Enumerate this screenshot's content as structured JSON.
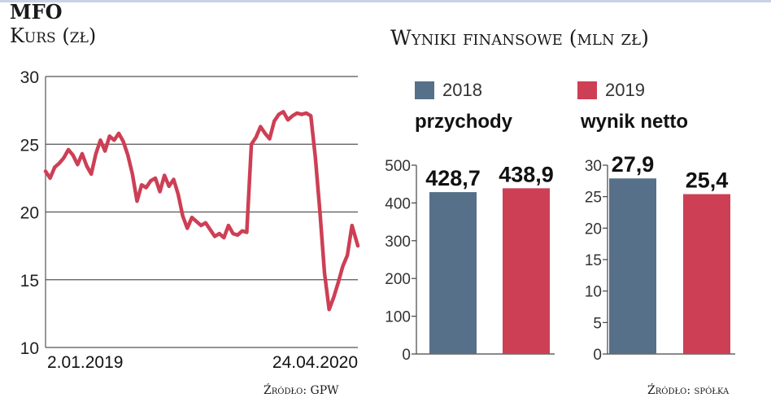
{
  "ticker": "MFO",
  "price_subtitle": "Kurs (zł)",
  "financials_title": "Wyniki finansowe (mln zł)",
  "price_source": "Źródło: GPW",
  "financials_source": "Źródło: spółka",
  "colors": {
    "series_2018": "#567089",
    "series_2019": "#cd3f55",
    "price_line": "#cd3f55",
    "grid": "#555555"
  },
  "chart_data": [
    {
      "type": "line",
      "title": "Kurs (zł)",
      "x_start_label": "2.01.2019",
      "x_end_label": "24.04.2020",
      "ylim": [
        10,
        30
      ],
      "yticks": [
        "10",
        "15",
        "20",
        "25",
        "30"
      ],
      "grid": true,
      "series": [
        {
          "x": [
            "2019-01-02",
            "2019-01-09",
            "2019-01-16",
            "2019-01-23",
            "2019-01-30",
            "2019-02-06",
            "2019-02-13",
            "2019-02-20",
            "2019-02-27",
            "2019-03-06",
            "2019-03-13",
            "2019-03-20",
            "2019-03-27",
            "2019-04-03",
            "2019-04-10",
            "2019-04-17",
            "2019-04-24",
            "2019-05-01",
            "2019-05-08",
            "2019-05-15",
            "2019-05-22",
            "2019-05-29",
            "2019-06-05",
            "2019-06-12",
            "2019-06-19",
            "2019-06-26",
            "2019-07-03",
            "2019-07-10",
            "2019-07-17",
            "2019-07-24",
            "2019-07-31",
            "2019-08-07",
            "2019-08-14",
            "2019-08-21",
            "2019-08-28",
            "2019-09-04",
            "2019-09-11",
            "2019-09-18",
            "2019-09-25",
            "2019-10-02",
            "2019-10-09",
            "2019-10-16",
            "2019-10-23",
            "2019-10-30",
            "2019-11-06",
            "2019-11-13",
            "2019-11-20",
            "2019-11-27",
            "2019-12-04",
            "2019-12-11",
            "2019-12-18",
            "2019-12-25",
            "2020-01-01",
            "2020-01-08",
            "2020-01-15",
            "2020-01-22",
            "2020-01-29",
            "2020-02-05",
            "2020-02-12",
            "2020-02-19",
            "2020-02-26",
            "2020-03-04",
            "2020-03-11",
            "2020-03-18",
            "2020-03-25",
            "2020-04-01",
            "2020-04-08",
            "2020-04-15",
            "2020-04-24"
          ],
          "y": [
            23.0,
            22.5,
            23.3,
            23.6,
            24.0,
            24.6,
            24.2,
            23.5,
            24.3,
            23.4,
            22.8,
            24.3,
            25.3,
            24.5,
            25.6,
            25.3,
            25.8,
            25.2,
            24.2,
            22.8,
            20.8,
            22.0,
            21.8,
            22.3,
            22.5,
            21.5,
            22.7,
            21.9,
            22.4,
            21.3,
            19.7,
            18.8,
            19.6,
            19.3,
            19.0,
            19.2,
            18.7,
            18.2,
            18.4,
            18.1,
            19.0,
            18.4,
            18.3,
            18.6,
            18.5,
            25.0,
            25.5,
            26.3,
            25.8,
            25.4,
            26.7,
            27.2,
            27.4,
            26.8,
            27.1,
            27.3,
            27.2,
            27.3,
            27.1,
            24.0,
            20.0,
            15.5,
            12.8,
            13.7,
            14.8,
            16.0,
            16.8,
            19.0,
            17.5
          ]
        }
      ]
    },
    {
      "type": "bar",
      "title": "przychody",
      "categories": [
        "2018",
        "2019"
      ],
      "values": [
        428.7,
        438.9
      ],
      "value_labels": [
        "428,7",
        "438,9"
      ],
      "ylim": [
        0,
        500
      ],
      "yticks": [
        "0",
        "100",
        "200",
        "300",
        "400",
        "500"
      ]
    },
    {
      "type": "bar",
      "title": "wynik netto",
      "categories": [
        "2018",
        "2019"
      ],
      "values": [
        27.9,
        25.4
      ],
      "value_labels": [
        "27,9",
        "25,4"
      ],
      "ylim": [
        0,
        30
      ],
      "yticks": [
        "0",
        "5",
        "10",
        "15",
        "20",
        "25",
        "30"
      ]
    }
  ],
  "legend": [
    {
      "label": "2018",
      "color": "#567089"
    },
    {
      "label": "2019",
      "color": "#cd3f55"
    }
  ]
}
